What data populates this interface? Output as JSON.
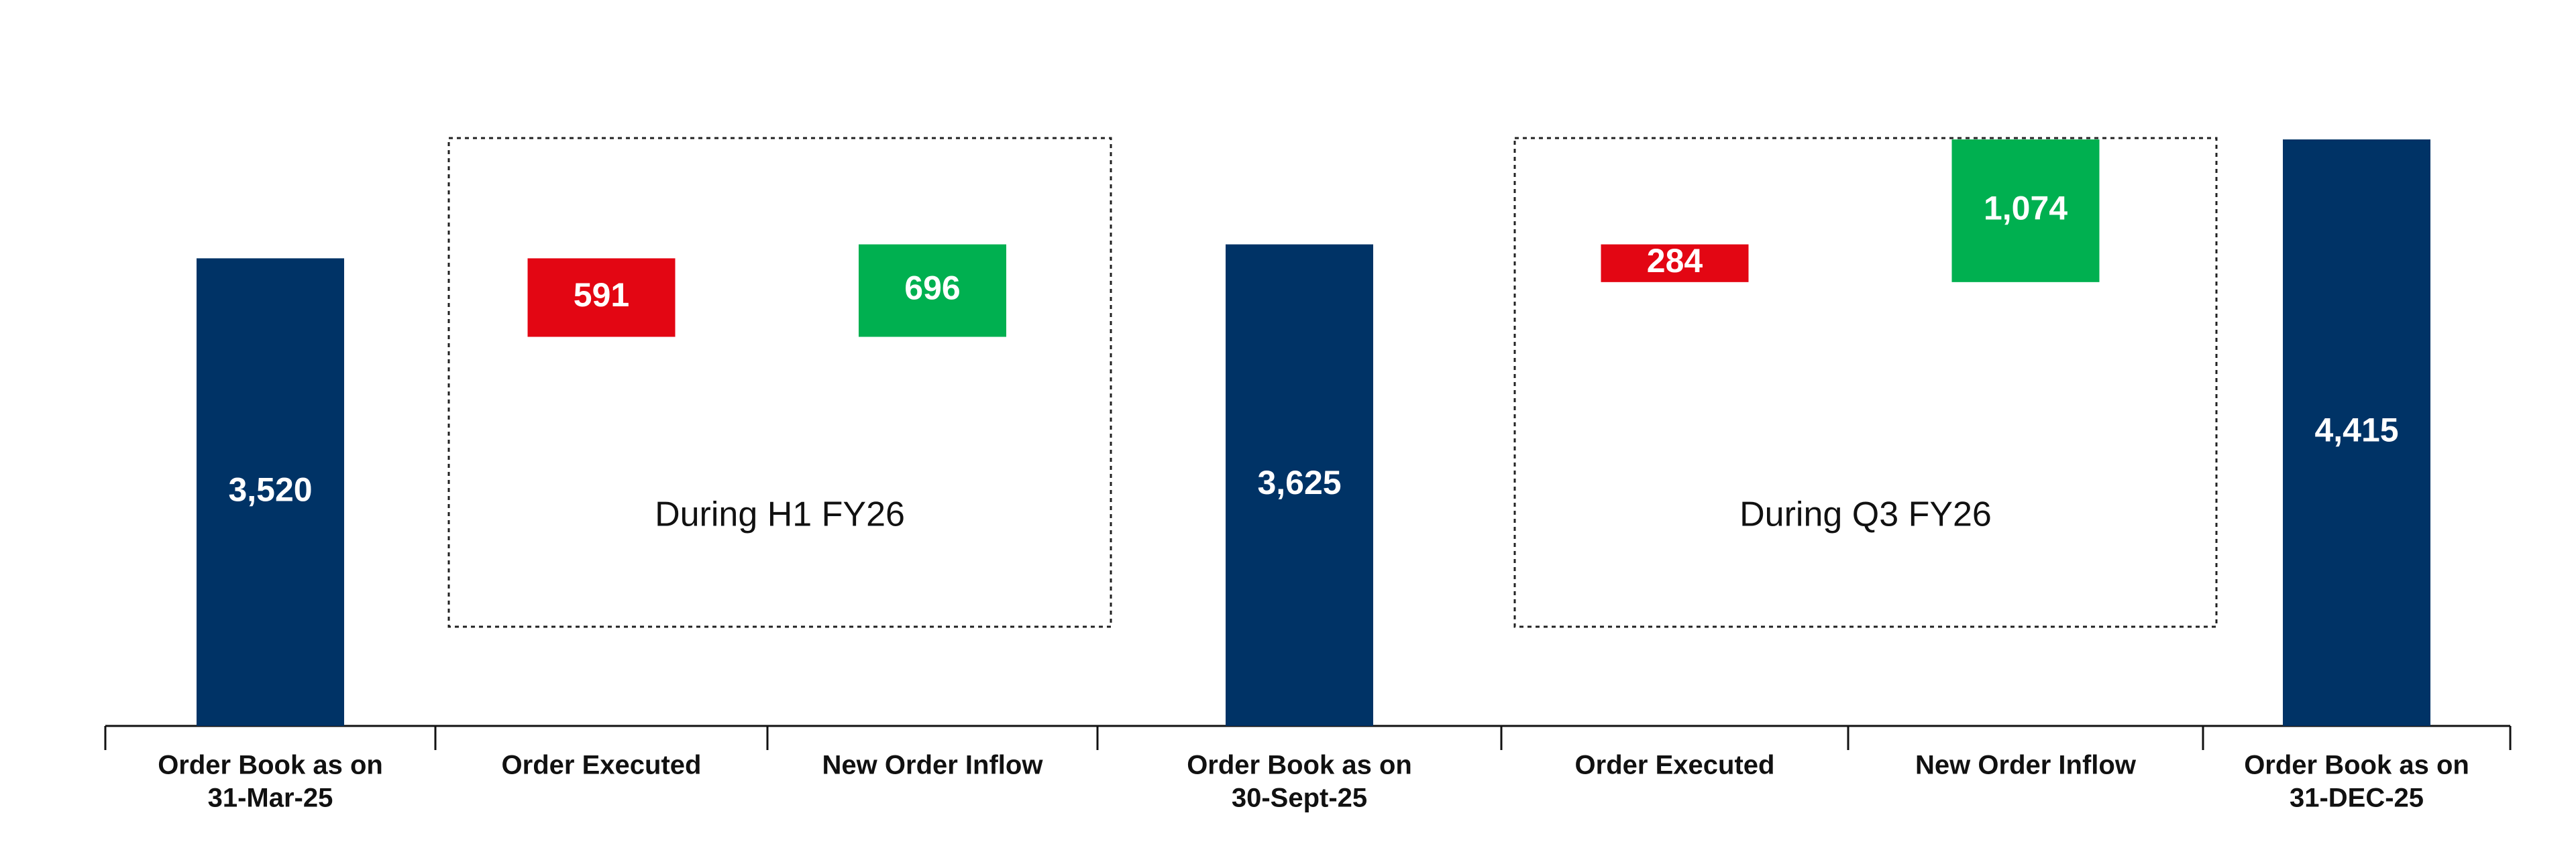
{
  "chart_data": {
    "type": "waterfall",
    "categories": [
      [
        "Order Book as on",
        "31-Mar-25"
      ],
      [
        "Order Executed"
      ],
      [
        "New Order Inflow"
      ],
      [
        "Order Book as on",
        "30-Sept-25"
      ],
      [
        "Order Executed"
      ],
      [
        "New Order Inflow"
      ],
      [
        "Order Book as on",
        "31-DEC-25"
      ]
    ],
    "kinds": [
      "total",
      "decrease",
      "increase",
      "total",
      "decrease",
      "increase",
      "total"
    ],
    "values": [
      3520,
      591,
      696,
      3625,
      284,
      1074,
      4415
    ],
    "value_labels": [
      "3,520",
      "591",
      "696",
      "3,625",
      "284",
      "1,074",
      "4,415"
    ],
    "colors": {
      "total": "#003366",
      "decrease": "#e30613",
      "increase": "#00b050"
    },
    "groups": [
      {
        "label": "During H1 FY26",
        "from": 1,
        "to": 2
      },
      {
        "label": "During Q3 FY26",
        "from": 4,
        "to": 5
      }
    ]
  }
}
